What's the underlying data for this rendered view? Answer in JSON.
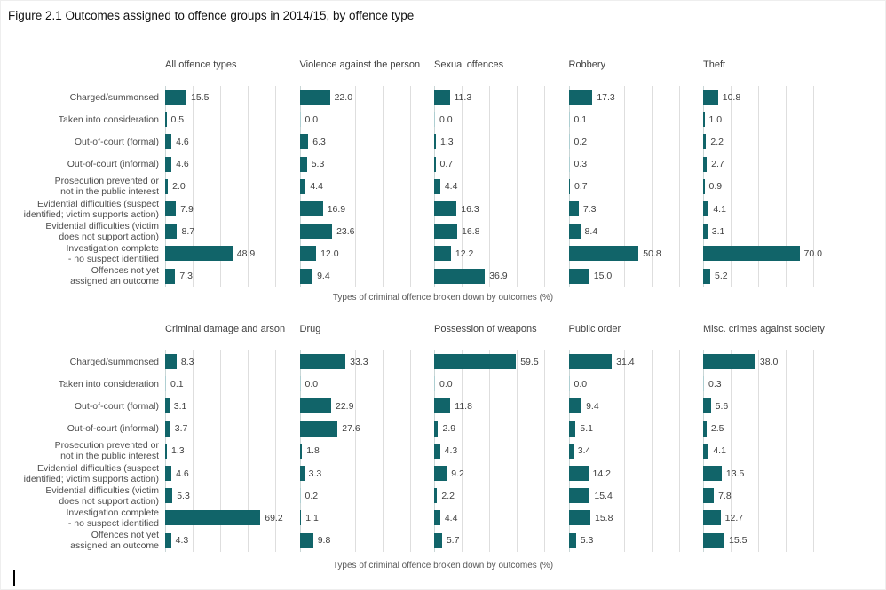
{
  "figure": {
    "title": "Figure 2.1 Outcomes assigned to offence groups in 2014/15, by offence type"
  },
  "colors": {
    "bar": "#116469",
    "bar_faint": "#aecfd2",
    "gridline": "#dedede",
    "axis_line": "#c9d6d6",
    "category_label": "#4d4d4d",
    "value_label": "#404040",
    "panel_title": "#404040",
    "caption": "#595959",
    "title": "#111111"
  },
  "chart_data": {
    "type": "bar",
    "orientation": "horizontal",
    "value_unit": "%",
    "xlim": [
      0,
      80
    ],
    "gridline_step": 20,
    "grid": true,
    "value_labels": true,
    "legend": false,
    "categories": [
      "Charged/summonsed",
      "Taken into consideration",
      "Out-of-court (formal)",
      "Out-of-court (informal)",
      "Prosecution prevented or\nnot in the public interest",
      "Evidential difficulties (suspect\nidentified; victim supports action)",
      "Evidential difficulties (victim\ndoes not support action)",
      "Investigation complete\n- no suspect identified",
      "Offences not yet\nassigned an outcome"
    ],
    "rows": [
      {
        "caption": "Types of criminal offence broken down by outcomes (%)",
        "series": [
          {
            "name": "All offence types",
            "values": [
              15.5,
              0.5,
              4.6,
              4.6,
              2.0,
              7.9,
              8.7,
              48.9,
              7.3
            ]
          },
          {
            "name": "Violence against the person",
            "values": [
              22.0,
              0.0,
              6.3,
              5.3,
              4.4,
              16.9,
              23.6,
              12.0,
              9.4
            ]
          },
          {
            "name": "Sexual offences",
            "values": [
              11.3,
              0.0,
              1.3,
              0.7,
              4.4,
              16.3,
              16.8,
              12.2,
              36.9
            ]
          },
          {
            "name": "Robbery",
            "values": [
              17.3,
              0.1,
              0.2,
              0.3,
              0.7,
              7.3,
              8.4,
              50.8,
              15.0
            ]
          },
          {
            "name": "Theft",
            "values": [
              10.8,
              1.0,
              2.2,
              2.7,
              0.9,
              4.1,
              3.1,
              70.0,
              5.2
            ]
          }
        ]
      },
      {
        "caption": "Types of criminal offence broken down by outcomes (%)",
        "series": [
          {
            "name": "Criminal damage and arson",
            "values": [
              8.3,
              0.1,
              3.1,
              3.7,
              1.3,
              4.6,
              5.3,
              69.2,
              4.3
            ]
          },
          {
            "name": "Drug",
            "values": [
              33.3,
              0.0,
              22.9,
              27.6,
              1.8,
              3.3,
              0.2,
              1.1,
              9.8
            ]
          },
          {
            "name": "Possession of weapons",
            "values": [
              59.5,
              0.0,
              11.8,
              2.9,
              4.3,
              9.2,
              2.2,
              4.4,
              5.7
            ]
          },
          {
            "name": "Public order",
            "values": [
              31.4,
              0.0,
              9.4,
              5.1,
              3.4,
              14.2,
              15.4,
              15.8,
              5.3
            ]
          },
          {
            "name": "Misc. crimes against society",
            "values": [
              38.0,
              0.3,
              5.6,
              2.5,
              4.1,
              13.5,
              7.8,
              12.7,
              15.5
            ]
          }
        ]
      }
    ]
  },
  "text_cursor": {
    "visible": true
  }
}
